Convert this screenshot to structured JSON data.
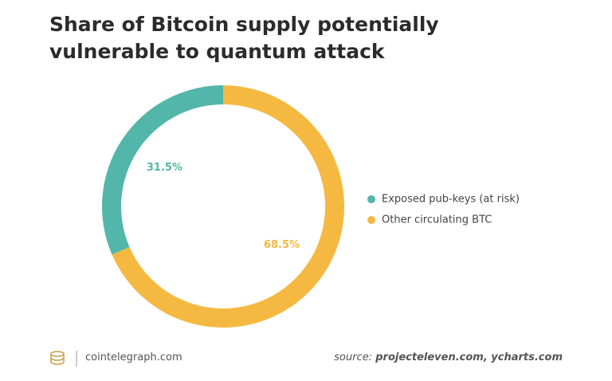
{
  "chart_data": {
    "type": "donut",
    "title": "Share of Bitcoin supply potentially vulnerable to quantum attack",
    "categories": [
      "Exposed pub-keys (at risk)",
      "Other circulating BTC"
    ],
    "values": [
      31.5,
      68.5
    ],
    "value_labels": [
      "31.5%",
      "68.5%"
    ],
    "colors": [
      "#52b6aa",
      "#f5b942"
    ]
  },
  "footer": {
    "site": "cointelegraph.com",
    "source_prefix": "source:",
    "source": "projecteleven.com, ycharts.com"
  }
}
